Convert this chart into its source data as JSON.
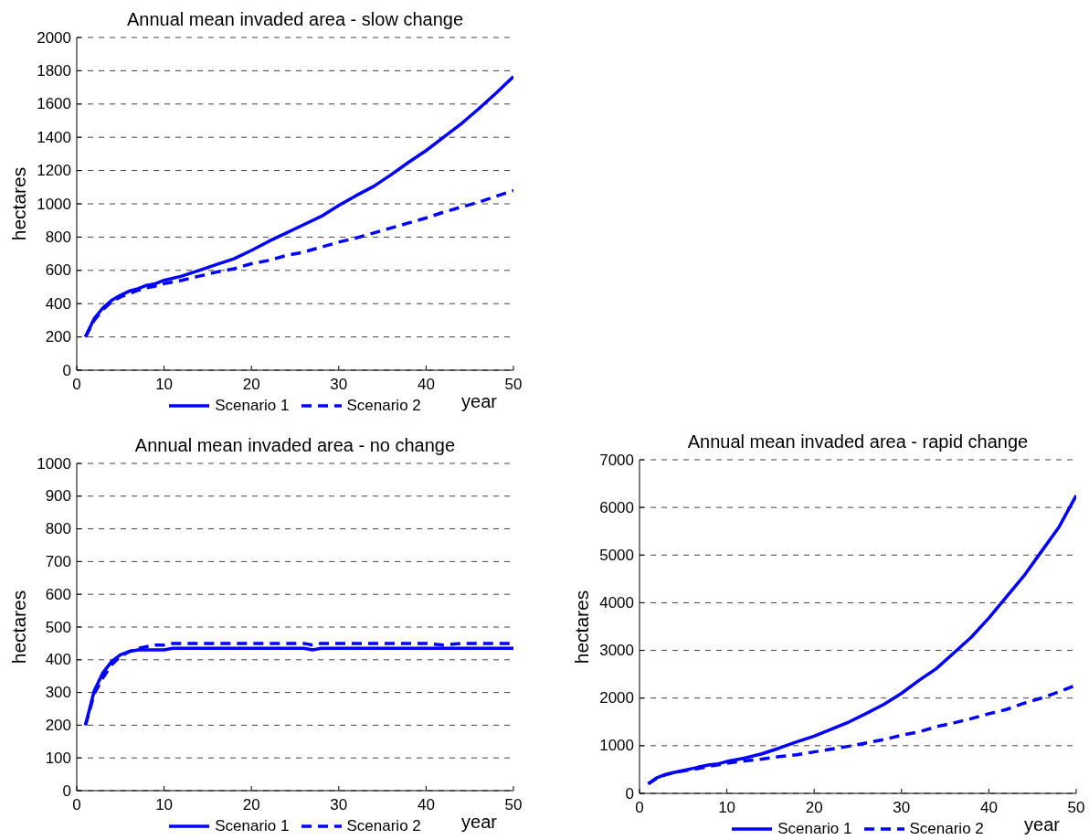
{
  "chart_data": [
    {
      "type": "line",
      "title": "Annual mean invaded area - slow change",
      "xlabel": "year",
      "ylabel": "hectares",
      "x": [
        1,
        2,
        3,
        4,
        5,
        6,
        7,
        8,
        9,
        10,
        12,
        14,
        16,
        18,
        20,
        22,
        24,
        26,
        28,
        30,
        32,
        34,
        36,
        38,
        40,
        42,
        44,
        46,
        48,
        50
      ],
      "series": [
        {
          "name": "Scenario 1",
          "color": "#0000ff",
          "line_style": "solid",
          "values": [
            200,
            310,
            375,
            420,
            450,
            475,
            490,
            510,
            520,
            540,
            565,
            600,
            635,
            670,
            720,
            775,
            825,
            875,
            925,
            990,
            1050,
            1105,
            1175,
            1250,
            1320,
            1400,
            1480,
            1570,
            1665,
            1765
          ]
        },
        {
          "name": "Scenario 2",
          "color": "#0000ff",
          "line_style": "dashed",
          "values": [
            200,
            300,
            365,
            410,
            440,
            460,
            480,
            495,
            505,
            520,
            540,
            565,
            590,
            610,
            640,
            660,
            690,
            710,
            740,
            770,
            795,
            825,
            855,
            885,
            915,
            950,
            980,
            1010,
            1045,
            1080
          ]
        }
      ],
      "xlim": [
        0,
        50
      ],
      "xticks": [
        0,
        10,
        20,
        30,
        40,
        50
      ],
      "ylim": [
        0,
        2000
      ],
      "yticks": [
        0,
        200,
        400,
        600,
        800,
        1000,
        1200,
        1400,
        1600,
        1800,
        2000
      ],
      "grid": "y",
      "legend": "bottom"
    },
    {
      "type": "line",
      "title": "Annual mean invaded area - no change",
      "xlabel": "year",
      "ylabel": "hectares",
      "x": [
        1,
        2,
        3,
        4,
        5,
        6,
        7,
        8,
        9,
        10,
        11,
        12,
        14,
        16,
        18,
        20,
        22,
        24,
        26,
        27,
        28,
        30,
        32,
        34,
        36,
        38,
        40,
        42,
        44,
        46,
        48,
        50
      ],
      "series": [
        {
          "name": "Scenario 1",
          "color": "#0000ff",
          "line_style": "solid",
          "values": [
            200,
            305,
            360,
            395,
            415,
            425,
            430,
            430,
            430,
            430,
            435,
            435,
            435,
            435,
            435,
            435,
            435,
            435,
            435,
            430,
            435,
            435,
            435,
            435,
            435,
            435,
            435,
            435,
            435,
            435,
            435,
            435
          ]
        },
        {
          "name": "Scenario 2",
          "color": "#0000ff",
          "line_style": "dashed",
          "values": [
            200,
            295,
            345,
            385,
            410,
            425,
            435,
            440,
            445,
            445,
            450,
            450,
            450,
            450,
            450,
            450,
            450,
            450,
            450,
            445,
            450,
            450,
            450,
            450,
            450,
            450,
            450,
            445,
            450,
            450,
            450,
            450
          ]
        }
      ],
      "xlim": [
        0,
        50
      ],
      "xticks": [
        0,
        10,
        20,
        30,
        40,
        50
      ],
      "ylim": [
        0,
        1000
      ],
      "yticks": [
        0,
        100,
        200,
        300,
        400,
        500,
        600,
        700,
        800,
        900,
        1000
      ],
      "grid": "y",
      "legend": "bottom"
    },
    {
      "type": "line",
      "title": "Annual mean invaded area - rapid change",
      "xlabel": "year",
      "ylabel": "hectares",
      "x": [
        1,
        2,
        3,
        4,
        5,
        6,
        7,
        8,
        9,
        10,
        12,
        14,
        16,
        18,
        20,
        22,
        24,
        26,
        28,
        30,
        32,
        34,
        36,
        38,
        40,
        42,
        44,
        46,
        48,
        50
      ],
      "series": [
        {
          "name": "Scenario 1",
          "color": "#0000ff",
          "line_style": "solid",
          "values": [
            200,
            330,
            400,
            440,
            480,
            520,
            560,
            600,
            620,
            670,
            740,
            830,
            950,
            1080,
            1200,
            1350,
            1500,
            1680,
            1870,
            2100,
            2370,
            2620,
            2950,
            3280,
            3680,
            4120,
            4560,
            5070,
            5580,
            6250
          ]
        },
        {
          "name": "Scenario 2",
          "color": "#0000ff",
          "line_style": "dashed",
          "values": [
            200,
            320,
            390,
            440,
            470,
            500,
            530,
            570,
            600,
            630,
            680,
            720,
            770,
            810,
            870,
            930,
            990,
            1060,
            1130,
            1220,
            1290,
            1400,
            1480,
            1570,
            1670,
            1760,
            1890,
            2000,
            2130,
            2270
          ]
        }
      ],
      "xlim": [
        0,
        50
      ],
      "xticks": [
        0,
        10,
        20,
        30,
        40,
        50
      ],
      "ylim": [
        0,
        7000
      ],
      "yticks": [
        0,
        1000,
        2000,
        3000,
        4000,
        5000,
        6000,
        7000
      ],
      "grid": "y",
      "legend": "bottom"
    }
  ]
}
